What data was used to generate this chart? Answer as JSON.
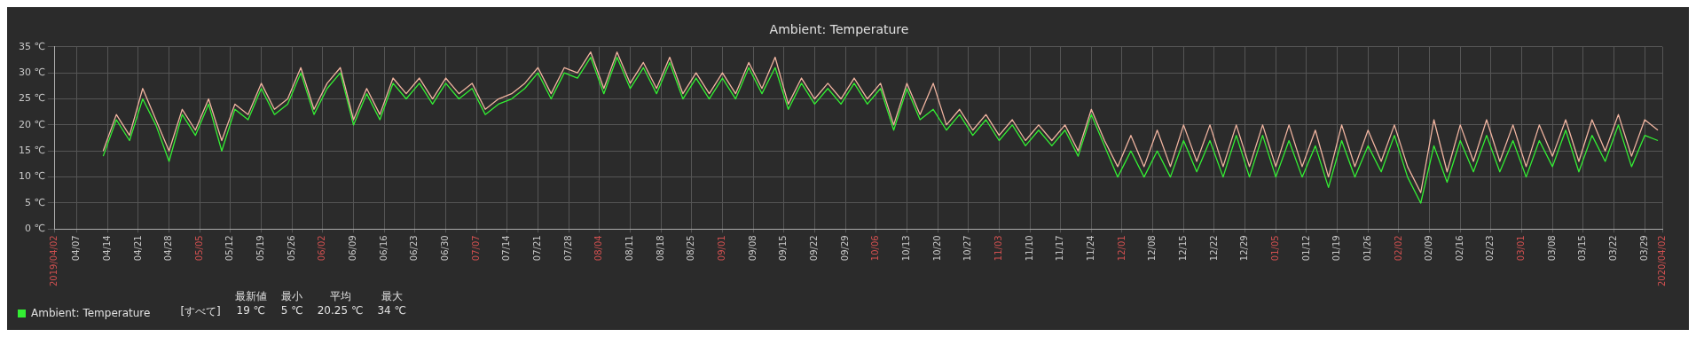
{
  "chart_data": {
    "type": "line",
    "title": "Ambient: Temperature",
    "x": [
      "2019-04-13",
      "2019-04-16",
      "2019-04-19",
      "2019-04-22",
      "2019-04-25",
      "2019-04-28",
      "2019-05-01",
      "2019-05-04",
      "2019-05-07",
      "2019-05-10",
      "2019-05-13",
      "2019-05-16",
      "2019-05-19",
      "2019-05-22",
      "2019-05-25",
      "2019-05-28",
      "2019-05-31",
      "2019-06-03",
      "2019-06-06",
      "2019-06-09",
      "2019-06-12",
      "2019-06-15",
      "2019-06-18",
      "2019-06-21",
      "2019-06-24",
      "2019-06-27",
      "2019-06-30",
      "2019-07-03",
      "2019-07-06",
      "2019-07-09",
      "2019-07-12",
      "2019-07-15",
      "2019-07-18",
      "2019-07-21",
      "2019-07-24",
      "2019-07-27",
      "2019-07-30",
      "2019-08-02",
      "2019-08-05",
      "2019-08-08",
      "2019-08-11",
      "2019-08-14",
      "2019-08-17",
      "2019-08-20",
      "2019-08-23",
      "2019-08-26",
      "2019-08-29",
      "2019-09-01",
      "2019-09-04",
      "2019-09-07",
      "2019-09-10",
      "2019-09-13",
      "2019-09-16",
      "2019-09-19",
      "2019-09-22",
      "2019-09-25",
      "2019-09-28",
      "2019-10-01",
      "2019-10-04",
      "2019-10-07",
      "2019-10-10",
      "2019-10-13",
      "2019-10-16",
      "2019-10-19",
      "2019-10-22",
      "2019-10-25",
      "2019-10-28",
      "2019-10-31",
      "2019-11-03",
      "2019-11-06",
      "2019-11-09",
      "2019-11-12",
      "2019-11-15",
      "2019-11-18",
      "2019-11-21",
      "2019-11-24",
      "2019-11-27",
      "2019-11-30",
      "2019-12-03",
      "2019-12-06",
      "2019-12-09",
      "2019-12-12",
      "2019-12-15",
      "2019-12-18",
      "2019-12-21",
      "2019-12-24",
      "2019-12-27",
      "2019-12-30",
      "2020-01-02",
      "2020-01-05",
      "2020-01-08",
      "2020-01-11",
      "2020-01-14",
      "2020-01-17",
      "2020-01-20",
      "2020-01-23",
      "2020-01-26",
      "2020-01-29",
      "2020-02-01",
      "2020-02-04",
      "2020-02-07",
      "2020-02-10",
      "2020-02-13",
      "2020-02-16",
      "2020-02-19",
      "2020-02-22",
      "2020-02-25",
      "2020-02-28",
      "2020-03-02",
      "2020-03-05",
      "2020-03-08",
      "2020-03-11",
      "2020-03-14",
      "2020-03-17",
      "2020-03-20",
      "2020-03-23",
      "2020-03-26",
      "2020-03-29",
      "2020-04-01"
    ],
    "series": [
      {
        "color": "#f0b4a0",
        "values": [
          15,
          22,
          18,
          27,
          21,
          15,
          23,
          19,
          25,
          17,
          24,
          22,
          28,
          23,
          25,
          31,
          23,
          28,
          31,
          21,
          27,
          22,
          29,
          26,
          29,
          25,
          29,
          26,
          28,
          23,
          25,
          26,
          28,
          31,
          26,
          31,
          30,
          34,
          27,
          34,
          28,
          32,
          27,
          33,
          26,
          30,
          26,
          30,
          26,
          32,
          27,
          33,
          24,
          29,
          25,
          28,
          25,
          29,
          25,
          28,
          20,
          28,
          22,
          28,
          20,
          23,
          19,
          22,
          18,
          21,
          17,
          20,
          17,
          20,
          15,
          23,
          17,
          12,
          18,
          12,
          19,
          12,
          20,
          13,
          20,
          12,
          20,
          12,
          20,
          12,
          20,
          12,
          19,
          10,
          20,
          12,
          19,
          13,
          20,
          12,
          7,
          21,
          11,
          20,
          13,
          21,
          13,
          20,
          12,
          20,
          14,
          21,
          13,
          21,
          15,
          22,
          14,
          21,
          19
        ]
      },
      {
        "name": "Ambient: Temperature",
        "color": "#33ee33",
        "values": [
          14,
          21,
          17,
          25,
          20,
          13,
          22,
          18,
          24,
          15,
          23,
          21,
          27,
          22,
          24,
          30,
          22,
          27,
          30,
          20,
          26,
          21,
          28,
          25,
          28,
          24,
          28,
          25,
          27,
          22,
          24,
          25,
          27,
          30,
          25,
          30,
          29,
          33,
          26,
          33,
          27,
          31,
          26,
          32,
          25,
          29,
          25,
          29,
          25,
          31,
          26,
          31,
          23,
          28,
          24,
          27,
          24,
          28,
          24,
          27,
          19,
          27,
          21,
          23,
          19,
          22,
          18,
          21,
          17,
          20,
          16,
          19,
          16,
          19,
          14,
          22,
          16,
          10,
          15,
          10,
          15,
          10,
          17,
          11,
          17,
          10,
          18,
          10,
          18,
          10,
          17,
          10,
          16,
          8,
          17,
          10,
          16,
          11,
          18,
          10,
          5,
          16,
          9,
          17,
          11,
          18,
          11,
          17,
          10,
          17,
          12,
          19,
          11,
          18,
          13,
          20,
          12,
          18,
          17
        ]
      }
    ],
    "xlim": [
      "2019-04-02",
      "2020-04-02"
    ],
    "xticks": [
      {
        "value": "2019-04-02",
        "label": "2019/04/02"
      },
      {
        "value": "2019-04-07",
        "label": "04/07"
      },
      {
        "value": "2019-04-14",
        "label": "04/14"
      },
      {
        "value": "2019-04-21",
        "label": "04/21"
      },
      {
        "value": "2019-04-28",
        "label": "04/28"
      },
      {
        "value": "2019-05-05",
        "label": "05/05"
      },
      {
        "value": "2019-05-12",
        "label": "05/12"
      },
      {
        "value": "2019-05-19",
        "label": "05/19"
      },
      {
        "value": "2019-05-26",
        "label": "05/26"
      },
      {
        "value": "2019-06-02",
        "label": "06/02"
      },
      {
        "value": "2019-06-09",
        "label": "06/09"
      },
      {
        "value": "2019-06-16",
        "label": "06/16"
      },
      {
        "value": "2019-06-23",
        "label": "06/23"
      },
      {
        "value": "2019-06-30",
        "label": "06/30"
      },
      {
        "value": "2019-07-07",
        "label": "07/07"
      },
      {
        "value": "2019-07-14",
        "label": "07/14"
      },
      {
        "value": "2019-07-21",
        "label": "07/21"
      },
      {
        "value": "2019-07-28",
        "label": "07/28"
      },
      {
        "value": "2019-08-04",
        "label": "08/04"
      },
      {
        "value": "2019-08-11",
        "label": "08/11"
      },
      {
        "value": "2019-08-18",
        "label": "08/18"
      },
      {
        "value": "2019-08-25",
        "label": "08/25"
      },
      {
        "value": "2019-09-01",
        "label": "09/01"
      },
      {
        "value": "2019-09-08",
        "label": "09/08"
      },
      {
        "value": "2019-09-15",
        "label": "09/15"
      },
      {
        "value": "2019-09-22",
        "label": "09/22"
      },
      {
        "value": "2019-09-29",
        "label": "09/29"
      },
      {
        "value": "2019-10-06",
        "label": "10/06"
      },
      {
        "value": "2019-10-13",
        "label": "10/13"
      },
      {
        "value": "2019-10-20",
        "label": "10/20"
      },
      {
        "value": "2019-10-27",
        "label": "10/27"
      },
      {
        "value": "2019-11-03",
        "label": "11/03"
      },
      {
        "value": "2019-11-10",
        "label": "11/10"
      },
      {
        "value": "2019-11-17",
        "label": "11/17"
      },
      {
        "value": "2019-11-24",
        "label": "11/24"
      },
      {
        "value": "2019-12-01",
        "label": "12/01"
      },
      {
        "value": "2019-12-08",
        "label": "12/08"
      },
      {
        "value": "2019-12-15",
        "label": "12/15"
      },
      {
        "value": "2019-12-22",
        "label": "12/22"
      },
      {
        "value": "2019-12-29",
        "label": "12/29"
      },
      {
        "value": "2020-01-05",
        "label": "01/05"
      },
      {
        "value": "2020-01-12",
        "label": "01/12"
      },
      {
        "value": "2020-01-19",
        "label": "01/19"
      },
      {
        "value": "2020-01-26",
        "label": "01/26"
      },
      {
        "value": "2020-02-02",
        "label": "02/02"
      },
      {
        "value": "2020-02-09",
        "label": "02/09"
      },
      {
        "value": "2020-02-16",
        "label": "02/16"
      },
      {
        "value": "2020-02-23",
        "label": "02/23"
      },
      {
        "value": "2020-03-01",
        "label": "03/01"
      },
      {
        "value": "2020-03-08",
        "label": "03/08"
      },
      {
        "value": "2020-03-15",
        "label": "03/15"
      },
      {
        "value": "2020-03-22",
        "label": "03/22"
      },
      {
        "value": "2020-03-29",
        "label": "03/29"
      },
      {
        "value": "2020-04-02",
        "label": "2020/04/02"
      }
    ],
    "ylim": [
      0,
      35
    ],
    "yticks": [
      {
        "value": 0,
        "label": "0 ℃"
      },
      {
        "value": 5,
        "label": "5 ℃"
      },
      {
        "value": 10,
        "label": "10 ℃"
      },
      {
        "value": 15,
        "label": "15 ℃"
      },
      {
        "value": 20,
        "label": "20 ℃"
      },
      {
        "value": 25,
        "label": "25 ℃"
      },
      {
        "value": 30,
        "label": "30 ℃"
      },
      {
        "value": 35,
        "label": "35 ℃"
      }
    ],
    "grid": true,
    "legend": "bottom left",
    "marker": "none",
    "line_style": "solid",
    "annotations": [
      "[すべて]",
      "最新値",
      "19 ℃",
      "最小",
      "5 ℃",
      "平均",
      "20.25 ℃",
      "最大",
      "34 ℃"
    ]
  }
}
